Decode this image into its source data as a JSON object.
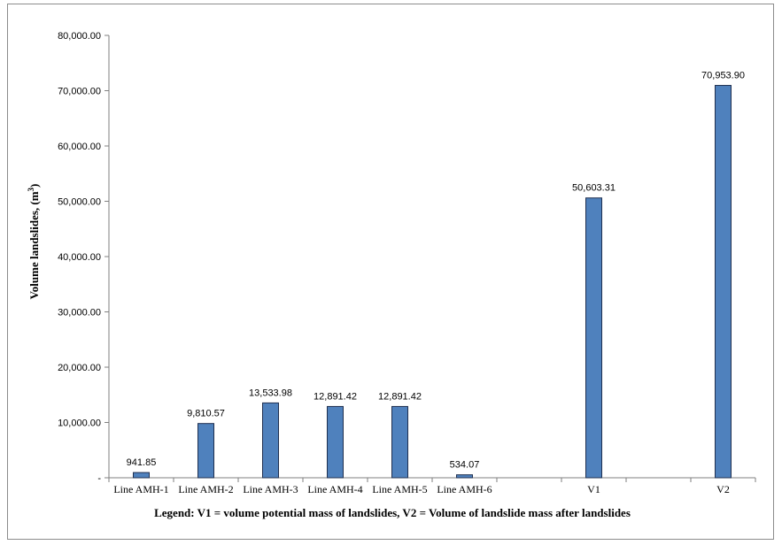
{
  "chart_data": {
    "type": "bar",
    "categories": [
      "Line AMH-1",
      "Line AMH-2",
      "Line AMH-3",
      "Line AMH-4",
      "Line AMH-5",
      "Line AMH-6",
      "",
      "V1",
      "",
      "V2"
    ],
    "values": [
      941.85,
      9810.57,
      13533.98,
      12891.42,
      12891.42,
      534.07,
      null,
      50603.31,
      null,
      70953.9
    ],
    "data_labels": [
      "941.85",
      "9,810.57",
      "13,533.98",
      "12,891.42",
      "12,891.42",
      "534.07",
      "",
      "50,603.31",
      "",
      "70,953.90"
    ],
    "ylabel": "Volume landslides, (m",
    "ylabel_superscript": "3",
    "ylabel_close": ")",
    "ylim": [
      0,
      80000
    ],
    "yticks": [
      0,
      10000,
      20000,
      30000,
      40000,
      50000,
      60000,
      70000,
      80000
    ],
    "ytick_labels": [
      "-",
      "10,000.00",
      "20,000.00",
      "30,000.00",
      "40,000.00",
      "50,000.00",
      "60,000.00",
      "70,000.00",
      "80,000.00"
    ],
    "legend_note": "Legend: V1 = volume potential mass of landslides, V2 = Volume of landslide mass after landslides",
    "bar_color": "#4f81bd",
    "bar_border_color": "#1f2f4f",
    "grid": false
  }
}
